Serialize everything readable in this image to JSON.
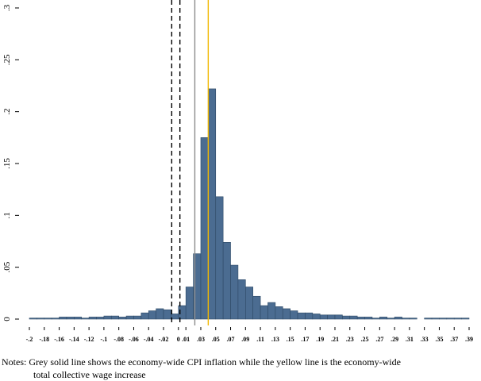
{
  "chart_data": {
    "type": "histogram",
    "bins": [
      -0.2,
      -0.19,
      -0.18,
      -0.17,
      -0.16,
      -0.15,
      -0.14,
      -0.13,
      -0.12,
      -0.11,
      -0.1,
      -0.09,
      -0.08,
      -0.07,
      -0.06,
      -0.05,
      -0.04,
      -0.03,
      -0.02,
      -0.01,
      0,
      0.01,
      0.02,
      0.03,
      0.04,
      0.05,
      0.06,
      0.07,
      0.08,
      0.09,
      0.1,
      0.11,
      0.12,
      0.13,
      0.14,
      0.15,
      0.16,
      0.17,
      0.18,
      0.19,
      0.2,
      0.21,
      0.22,
      0.23,
      0.24,
      0.25,
      0.26,
      0.27,
      0.28,
      0.29,
      0.3,
      0.31,
      0.32,
      0.33,
      0.34,
      0.35,
      0.36,
      0.37,
      0.38,
      0.39
    ],
    "counts": [
      0.001,
      0.001,
      0.001,
      0.001,
      0.002,
      0.002,
      0.002,
      0.001,
      0.002,
      0.002,
      0.003,
      0.003,
      0.002,
      0.003,
      0.003,
      0.006,
      0.008,
      0.01,
      0.009,
      0.005,
      0.013,
      0.031,
      0.063,
      0.175,
      0.222,
      0.118,
      0.074,
      0.052,
      0.038,
      0.031,
      0.022,
      0.013,
      0.016,
      0.012,
      0.01,
      0.008,
      0.006,
      0.006,
      0.005,
      0.004,
      0.004,
      0.004,
      0.003,
      0.003,
      0.002,
      0.002,
      0.001,
      0.002,
      0.001,
      0.002,
      0.001,
      0.001,
      0,
      0.001,
      0.001,
      0.001,
      0.001,
      0.001,
      0.001
    ],
    "color": "#4b6c91",
    "xlim": [
      -0.2,
      0.39
    ],
    "ylim": [
      0,
      0.3
    ],
    "yticks": [
      0,
      {
        "value": 0.05,
        "label": ".05"
      },
      {
        "value": 0.1,
        "label": ".1"
      },
      {
        "value": 0.15,
        "label": ".15"
      },
      {
        "value": 0.2,
        "label": ".2"
      },
      {
        "value": 0.25,
        "label": ".25"
      },
      {
        "value": 0.3,
        "label": ".3"
      }
    ],
    "xticks": [
      {
        "value": -0.2,
        "label": "-.2"
      },
      {
        "value": -0.18,
        "label": "-.18"
      },
      {
        "value": -0.16,
        "label": "-.16"
      },
      {
        "value": -0.14,
        "label": "-.14"
      },
      {
        "value": -0.12,
        "label": "-.12"
      },
      {
        "value": -0.1,
        "label": "-.1"
      },
      {
        "value": -0.08,
        "label": "-.08"
      },
      {
        "value": -0.06,
        "label": "-.06"
      },
      {
        "value": -0.04,
        "label": "-.04"
      },
      {
        "value": -0.02,
        "label": "-.02"
      },
      0,
      {
        "value": 0.01,
        "label": ".01"
      },
      {
        "value": 0.03,
        "label": ".03"
      },
      {
        "value": 0.05,
        "label": ".05"
      },
      {
        "value": 0.07,
        "label": ".07"
      },
      {
        "value": 0.09,
        "label": ".09"
      },
      {
        "value": 0.11,
        "label": ".11"
      },
      {
        "value": 0.13,
        "label": ".13"
      },
      {
        "value": 0.15,
        "label": ".15"
      },
      {
        "value": 0.17,
        "label": ".17"
      },
      {
        "value": 0.19,
        "label": ".19"
      },
      {
        "value": 0.21,
        "label": ".21"
      },
      {
        "value": 0.23,
        "label": ".23"
      },
      {
        "value": 0.25,
        "label": ".25"
      },
      {
        "value": 0.27,
        "label": ".27"
      },
      {
        "value": 0.29,
        "label": ".29"
      },
      {
        "value": 0.31,
        "label": ".31"
      },
      {
        "value": 0.33,
        "label": ".33"
      },
      {
        "value": 0.35,
        "label": ".35"
      },
      {
        "value": 0.37,
        "label": ".37"
      },
      {
        "value": 0.39,
        "label": ".39"
      }
    ],
    "reference_lines": [
      {
        "x": -0.009,
        "color": "#000000",
        "dashed": true
      },
      {
        "x": 0.002,
        "color": "#000000",
        "dashed": true
      },
      {
        "x": 0.022,
        "color": "#8c8c8c",
        "dashed": false
      },
      {
        "x": 0.04,
        "color": "#f2b800",
        "dashed": false
      }
    ],
    "notes": [
      "Notes: Grey solid line shows the economy-wide CPI inflation while the yellow line is the economy-wide",
      "total collective wage increase"
    ]
  }
}
